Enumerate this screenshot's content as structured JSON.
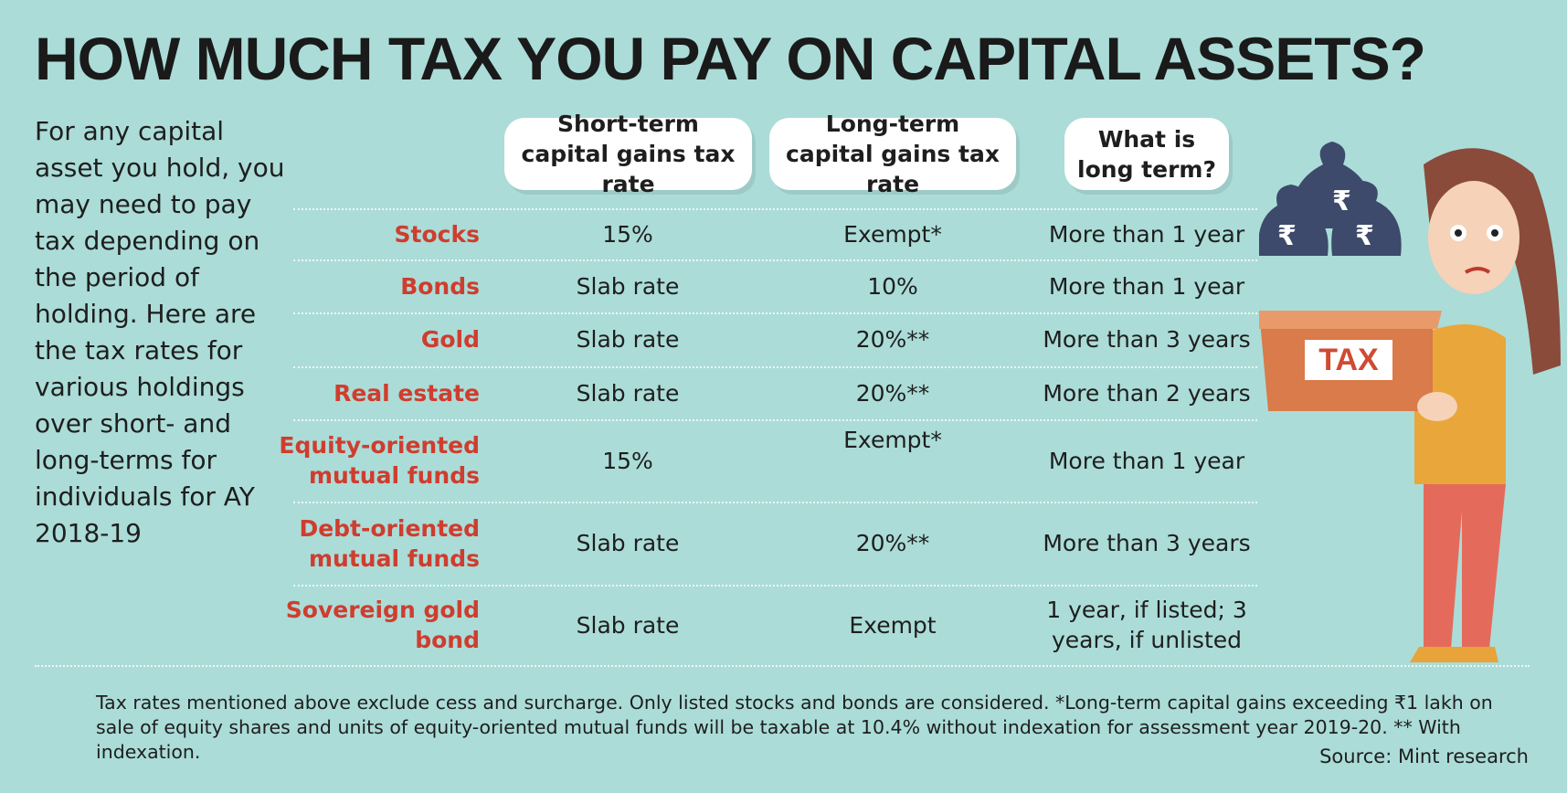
{
  "header": {
    "title": "HOW MUCH TAX YOU PAY ON CAPITAL ASSETS?"
  },
  "intro": "For any capital asset you hold, you may need to pay tax depending on the period of holding. Here are the tax rates for various holdings over short- and long-terms for individuals for AY 2018-19",
  "table": {
    "columns": [
      "Short-term capital gains tax rate",
      "Long-term capital gains tax rate",
      "What is long term?"
    ],
    "rows": [
      {
        "asset": [
          "Stocks"
        ],
        "short_term": "15%",
        "long_term": "Exempt*",
        "period": [
          "More than 1 year"
        ]
      },
      {
        "asset": [
          "Bonds"
        ],
        "short_term": "Slab rate",
        "long_term": "10%",
        "period": [
          "More than 1 year"
        ]
      },
      {
        "asset": [
          "Gold"
        ],
        "short_term": "Slab rate",
        "long_term": "20%**",
        "period": [
          "More than 3 years"
        ]
      },
      {
        "asset": [
          "Real estate"
        ],
        "short_term": "Slab rate",
        "long_term": "20%**",
        "period": [
          "More than 2 years"
        ]
      },
      {
        "asset": [
          "Equity-oriented",
          "mutual funds"
        ],
        "short_term": "15%",
        "long_term": "Exempt*",
        "period": [
          "More than 1 year"
        ]
      },
      {
        "asset": [
          "Debt-oriented",
          "mutual funds"
        ],
        "short_term": "Slab rate",
        "long_term": "20%**",
        "period": [
          "More than 3 years"
        ]
      },
      {
        "asset": [
          "Sovereign gold",
          "bond"
        ],
        "short_term": "Slab rate",
        "long_term": "Exempt",
        "period": [
          "1 year, if listed; 3",
          "years, if unlisted"
        ]
      }
    ]
  },
  "illustration": {
    "box_label": "TAX",
    "bag_symbol": "₹"
  },
  "footnote": "Tax rates mentioned above exclude cess and surcharge. Only listed stocks and bonds are considered. *Long-term capital gains exceeding ₹1 lakh on sale of equity shares and units of equity-oriented mutual funds will be taxable at 10.4% without indexation for assessment year 2019-20. ** With indexation.",
  "source": "Source: Mint research"
}
